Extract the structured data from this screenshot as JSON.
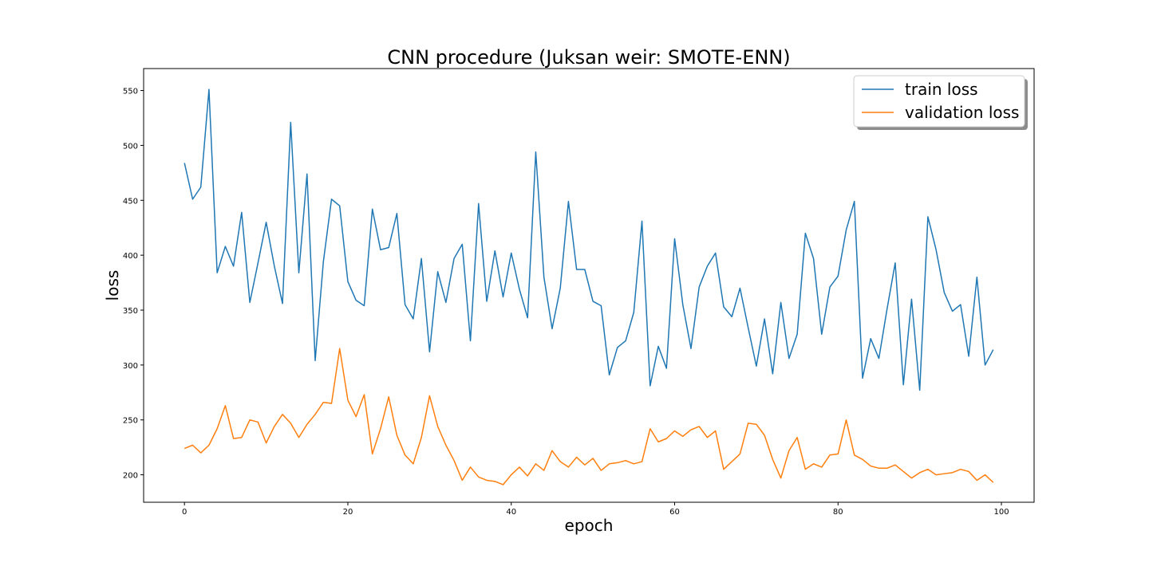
{
  "chart_data": {
    "type": "line",
    "title": "CNN procedure (Juksan weir: SMOTE-ENN)",
    "xlabel": "epoch",
    "ylabel": "loss",
    "xlim": [
      -5,
      104
    ],
    "ylim": [
      175,
      570
    ],
    "xticks": [
      0,
      20,
      40,
      60,
      80,
      100
    ],
    "yticks": [
      200,
      250,
      300,
      350,
      400,
      450,
      500,
      550
    ],
    "grid": false,
    "legend_position": "top-right",
    "series": [
      {
        "name": "train loss",
        "color": "#1f77b4",
        "values": [
          484,
          451,
          462,
          551,
          384,
          408,
          390,
          439,
          357,
          393,
          430,
          390,
          356,
          521,
          384,
          474,
          304,
          394,
          451,
          445,
          376,
          359,
          354,
          442,
          405,
          407,
          438,
          355,
          342,
          397,
          312,
          385,
          357,
          397,
          410,
          322,
          447,
          358,
          404,
          362,
          402,
          369,
          343,
          494,
          380,
          333,
          370,
          449,
          387,
          387,
          358,
          354,
          291,
          316,
          322,
          348,
          431,
          281,
          317,
          297,
          415,
          355,
          315,
          371,
          390,
          402,
          353,
          344,
          370,
          334,
          299,
          342,
          292,
          357,
          306,
          328,
          420,
          397,
          328,
          371,
          381,
          423,
          449,
          288,
          324,
          306,
          351,
          393,
          282,
          360,
          277,
          435,
          405,
          366,
          349,
          355,
          308,
          380,
          300,
          314
        ]
      },
      {
        "name": "validation loss",
        "color": "#ff7f0e",
        "values": [
          224,
          227,
          220,
          227,
          242,
          263,
          233,
          234,
          250,
          248,
          229,
          244,
          255,
          247,
          234,
          246,
          255,
          266,
          265,
          315,
          268,
          253,
          273,
          219,
          242,
          271,
          236,
          218,
          210,
          234,
          272,
          244,
          227,
          213,
          195,
          207,
          198,
          195,
          194,
          191,
          200,
          207,
          199,
          210,
          204,
          222,
          212,
          207,
          216,
          209,
          215,
          204,
          210,
          211,
          213,
          210,
          212,
          242,
          230,
          233,
          240,
          235,
          241,
          244,
          234,
          240,
          205,
          212,
          219,
          247,
          246,
          236,
          214,
          197,
          222,
          234,
          205,
          210,
          207,
          218,
          219,
          250,
          218,
          214,
          208,
          206,
          206,
          209,
          203,
          197,
          202,
          205,
          200,
          201,
          202,
          205,
          203,
          195,
          200,
          193
        ]
      }
    ]
  }
}
